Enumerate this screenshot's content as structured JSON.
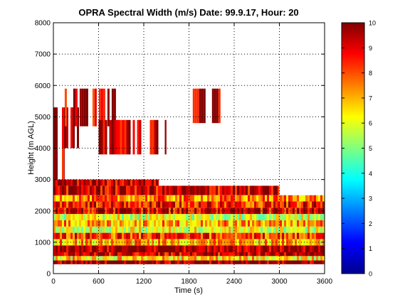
{
  "chart_data": {
    "type": "heatmap",
    "title": "OPRA Spectral Width (m/s)  Date: 99.9.17, Hour: 20",
    "xlabel": "Time (s)",
    "ylabel": "Height (m AGL)",
    "xlim": [
      0,
      3600
    ],
    "ylim": [
      0,
      8000
    ],
    "x_ticks": [
      "0",
      "600",
      "1200",
      "1800",
      "2400",
      "3000",
      "3600"
    ],
    "y_ticks": [
      "0",
      "1000",
      "2000",
      "3000",
      "4000",
      "5000",
      "6000",
      "7000",
      "8000"
    ],
    "grid": true,
    "colorbar": {
      "range": [
        0,
        10
      ],
      "ticks": [
        "0",
        "1",
        "2",
        "3",
        "4",
        "5",
        "6",
        "7",
        "8",
        "9",
        "10"
      ],
      "colormap": "jet"
    },
    "regions": [
      {
        "x": [
          0,
          3600
        ],
        "y": [
          300,
          420
        ],
        "value": 9.8
      },
      {
        "x": [
          0,
          3600
        ],
        "y": [
          420,
          560
        ],
        "value": 6.5
      },
      {
        "x": [
          0,
          3600
        ],
        "y": [
          560,
          680
        ],
        "value": 9.3
      },
      {
        "x": [
          0,
          3600
        ],
        "y": [
          680,
          900
        ],
        "value": 9.8
      },
      {
        "x": [
          0,
          3600
        ],
        "y": [
          900,
          1100
        ],
        "value": 7.0
      },
      {
        "x": [
          0,
          3600
        ],
        "y": [
          1100,
          1300
        ],
        "value": 8.2
      },
      {
        "x": [
          0,
          3600
        ],
        "y": [
          1300,
          1500
        ],
        "value": 6.0
      },
      {
        "x": [
          0,
          3600
        ],
        "y": [
          1500,
          1700
        ],
        "value": 7.2
      },
      {
        "x": [
          0,
          3600
        ],
        "y": [
          1700,
          1900
        ],
        "value": 5.8
      },
      {
        "x": [
          0,
          3600
        ],
        "y": [
          1900,
          2100
        ],
        "value": 9.0
      },
      {
        "x": [
          0,
          3600
        ],
        "y": [
          2100,
          2300
        ],
        "value": 8.5
      },
      {
        "x": [
          0,
          3600
        ],
        "y": [
          2300,
          2500
        ],
        "value": 7.5
      },
      {
        "x": [
          0,
          3000
        ],
        "y": [
          2500,
          2800
        ],
        "value": 9.2
      },
      {
        "x": [
          0,
          1400
        ],
        "y": [
          2800,
          3000
        ],
        "value": 9.5
      },
      {
        "x": [
          0,
          150
        ],
        "y": [
          3000,
          4300
        ],
        "value": 9.6
      },
      {
        "x": [
          0,
          350
        ],
        "y": [
          4000,
          5300
        ],
        "value": 9.7
      },
      {
        "x": [
          150,
          850
        ],
        "y": [
          4700,
          5900
        ],
        "value": 9.4
      },
      {
        "x": [
          600,
          1500
        ],
        "y": [
          3800,
          4900
        ],
        "value": 9.6
      },
      {
        "x": [
          1850,
          2300
        ],
        "y": [
          4800,
          5900
        ],
        "value": 9.5
      }
    ]
  }
}
